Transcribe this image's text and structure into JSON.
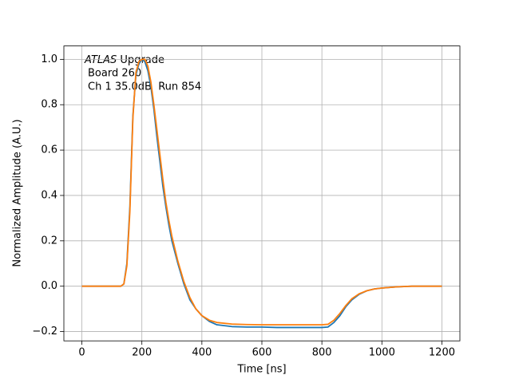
{
  "chart_data": {
    "type": "line",
    "xlabel": "Time [ns]",
    "ylabel": "Normalized Amplitude (A.U.)",
    "annotation": [
      "ATLAS",
      "Upgrade",
      "Board 260",
      "Ch 1 35.0dB  Run 854"
    ],
    "x": [
      0,
      20,
      40,
      60,
      80,
      100,
      120,
      130,
      140,
      150,
      160,
      170,
      180,
      190,
      200,
      210,
      220,
      230,
      240,
      250,
      260,
      270,
      280,
      290,
      300,
      320,
      340,
      360,
      380,
      400,
      425,
      450,
      500,
      550,
      600,
      650,
      700,
      750,
      800,
      820,
      840,
      860,
      880,
      900,
      925,
      950,
      975,
      1000,
      1050,
      1100,
      1150,
      1200
    ],
    "series": [
      {
        "color": "#1f77b4",
        "values": [
          0,
          0,
          0,
          0,
          0,
          0,
          0,
          0,
          0.01,
          0.1,
          0.35,
          0.75,
          0.93,
          0.98,
          1.0,
          0.99,
          0.95,
          0.88,
          0.78,
          0.66,
          0.55,
          0.44,
          0.35,
          0.27,
          0.2,
          0.1,
          0.01,
          -0.06,
          -0.1,
          -0.13,
          -0.155,
          -0.17,
          -0.178,
          -0.18,
          -0.18,
          -0.182,
          -0.182,
          -0.182,
          -0.182,
          -0.18,
          -0.16,
          -0.13,
          -0.09,
          -0.06,
          -0.035,
          -0.02,
          -0.012,
          -0.008,
          -0.003,
          0,
          0,
          0
        ]
      },
      {
        "color": "#ff7f0e",
        "values": [
          0,
          0,
          0,
          0,
          0,
          0,
          0,
          0,
          0.01,
          0.09,
          0.33,
          0.74,
          0.94,
          0.99,
          1.0,
          1.0,
          0.97,
          0.9,
          0.8,
          0.69,
          0.58,
          0.47,
          0.37,
          0.29,
          0.22,
          0.11,
          0.02,
          -0.05,
          -0.1,
          -0.13,
          -0.15,
          -0.16,
          -0.167,
          -0.169,
          -0.17,
          -0.17,
          -0.17,
          -0.17,
          -0.17,
          -0.168,
          -0.15,
          -0.12,
          -0.085,
          -0.055,
          -0.033,
          -0.02,
          -0.012,
          -0.008,
          -0.003,
          0,
          0,
          0
        ]
      }
    ],
    "xlim": [
      -60,
      1260
    ],
    "ylim": [
      -0.241,
      1.059
    ],
    "xticks": [
      0,
      200,
      400,
      600,
      800,
      1000,
      1200
    ],
    "yticks": [
      {
        "value": -0.2,
        "label": "−0.2"
      },
      {
        "value": 0,
        "label": "0.0"
      },
      0.2,
      0.4,
      0.6,
      0.8,
      {
        "value": 1,
        "label": "1.0"
      }
    ],
    "grid": true
  }
}
